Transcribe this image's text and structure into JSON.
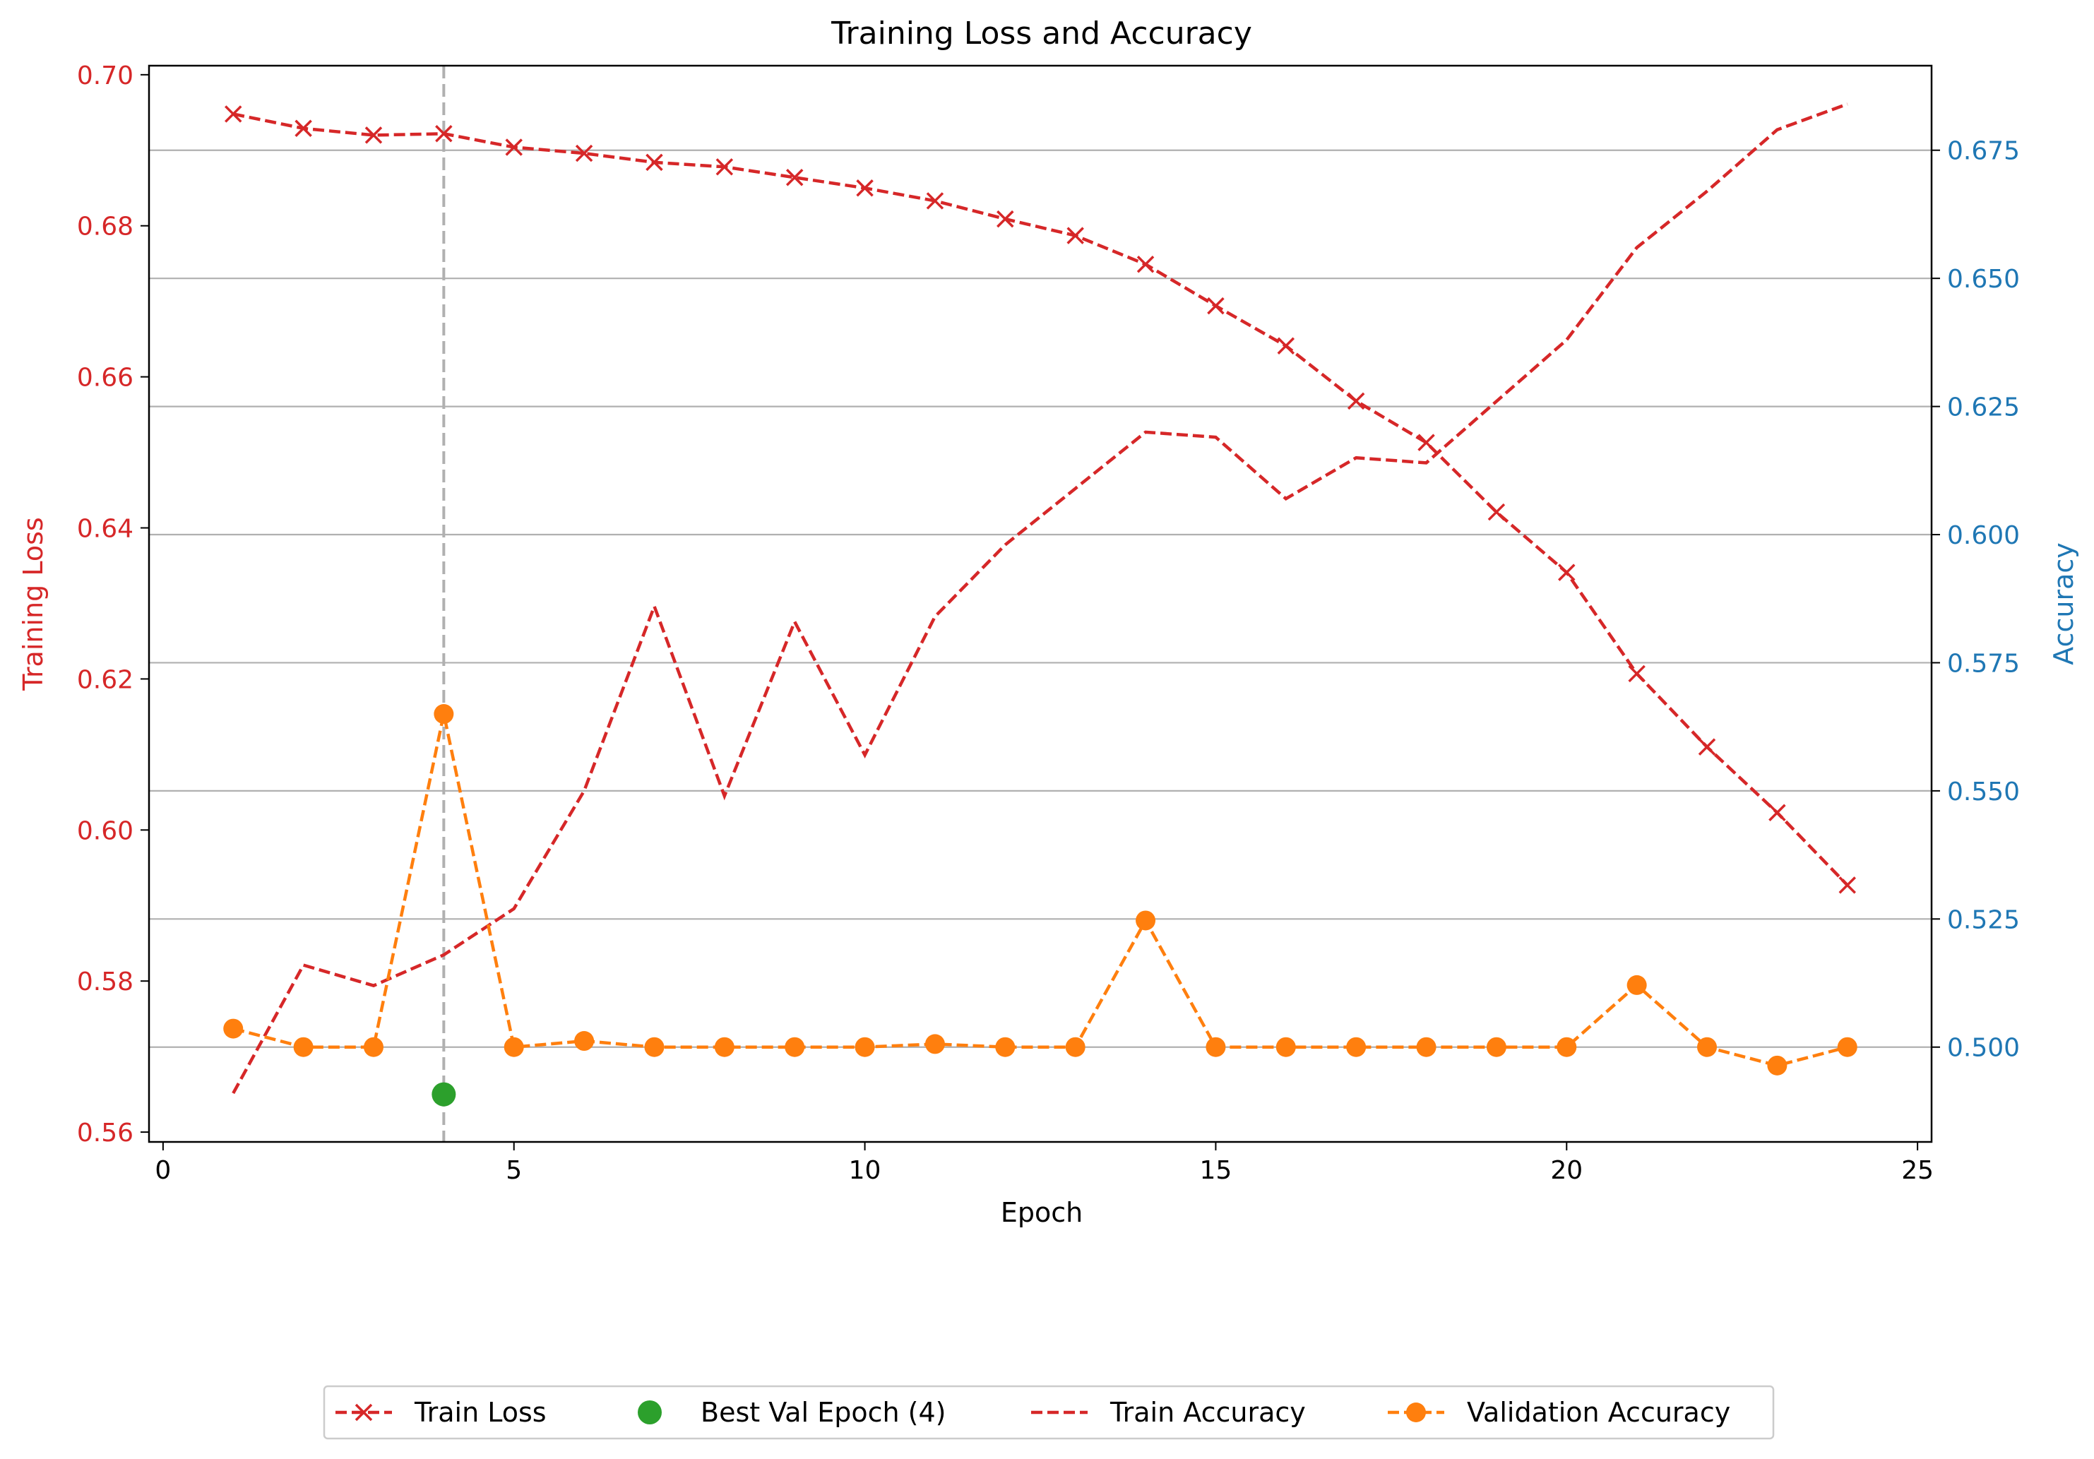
{
  "chart_data": {
    "type": "line",
    "title": "Training Loss and Accuracy",
    "xlabel": "Epoch",
    "ylabel_left": "Training Loss",
    "ylabel_right": "Accuracy",
    "xlim": [
      -0.2,
      25.2
    ],
    "ylim_left": [
      0.5587,
      0.7012
    ],
    "ylim_right": [
      0.4815,
      0.6915
    ],
    "x_ticks": [
      "0",
      "5",
      "10",
      "15",
      "20",
      "25"
    ],
    "y_left_ticks": [
      "0.56",
      "0.58",
      "0.60",
      "0.62",
      "0.64",
      "0.66",
      "0.68",
      "0.70"
    ],
    "y_right_ticks": [
      "0.500",
      "0.525",
      "0.550",
      "0.575",
      "0.600",
      "0.625",
      "0.650",
      "0.675"
    ],
    "grid": "right-axis horizontal",
    "legend_position": "bottom-center",
    "best_epoch_line_x": 4,
    "colors": {
      "loss_axis": "#d62728",
      "accuracy_axis": "#1f77b4",
      "train_loss": "#d62728",
      "train_accuracy": "#d62728",
      "validation_accuracy": "#ff7f0e",
      "best_epoch": "#2ca02c",
      "vline": "#b0b0b0",
      "grid": "#b0b0b0"
    },
    "series": [
      {
        "name": "Train Loss",
        "axis": "left",
        "marker": "x",
        "x": [
          1,
          2,
          3,
          4,
          5,
          6,
          7,
          8,
          9,
          10,
          11,
          12,
          13,
          14,
          15,
          16,
          17,
          18,
          19,
          20,
          21,
          22,
          23,
          24
        ],
        "values": [
          0.6948,
          0.6929,
          0.692,
          0.6922,
          0.6904,
          0.6896,
          0.6884,
          0.6878,
          0.6864,
          0.685,
          0.6833,
          0.6809,
          0.6787,
          0.6749,
          0.6694,
          0.6641,
          0.6568,
          0.6513,
          0.6421,
          0.6341,
          0.6207,
          0.611,
          0.6023,
          0.5927
        ]
      },
      {
        "name": "Best Val Epoch (4)",
        "axis": "left",
        "marker": "o",
        "x": [
          4
        ],
        "values": [
          0.565
        ]
      },
      {
        "name": "Train Accuracy",
        "axis": "right",
        "marker": "none",
        "x": [
          1,
          2,
          3,
          4,
          5,
          6,
          7,
          8,
          9,
          10,
          11,
          12,
          13,
          14,
          15,
          16,
          17,
          18,
          19,
          20,
          21,
          22,
          23,
          24
        ],
        "values": [
          0.491,
          0.516,
          0.512,
          0.518,
          0.527,
          0.55,
          0.586,
          0.549,
          0.583,
          0.557,
          0.584,
          0.598,
          0.609,
          0.62,
          0.619,
          0.607,
          0.615,
          0.614,
          0.626,
          0.638,
          0.656,
          0.667,
          0.679,
          0.684
        ]
      },
      {
        "name": "Validation Accuracy",
        "axis": "right",
        "marker": "o",
        "x": [
          1,
          2,
          3,
          4,
          5,
          6,
          7,
          8,
          9,
          10,
          11,
          12,
          13,
          14,
          15,
          16,
          17,
          18,
          19,
          20,
          21,
          22,
          23,
          24
        ],
        "values": [
          0.5036,
          0.5,
          0.5,
          0.565,
          0.5,
          0.5012,
          0.5,
          0.5,
          0.5,
          0.5,
          0.5006,
          0.5,
          0.5,
          0.5247,
          0.5,
          0.5,
          0.5,
          0.5,
          0.5,
          0.5,
          0.5121,
          0.5,
          0.4964,
          0.5
        ]
      }
    ]
  }
}
